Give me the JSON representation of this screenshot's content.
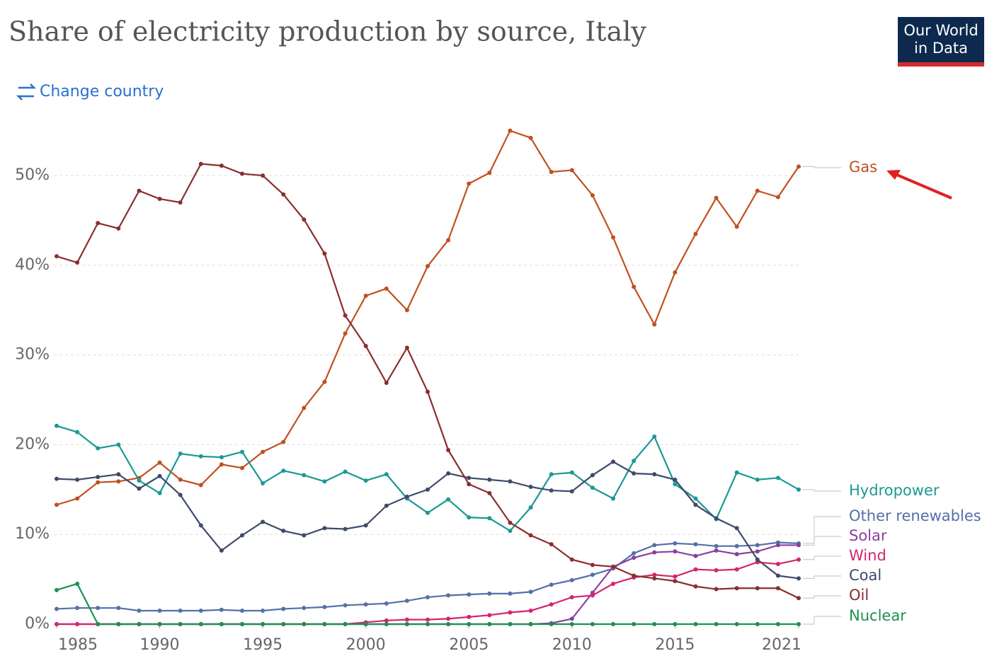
{
  "chart_data": {
    "type": "line",
    "title": "Share of electricity production by source, Italy",
    "change_country": "Change country",
    "logo": [
      "Our World",
      "in Data"
    ],
    "x": [
      1985,
      1986,
      1987,
      1988,
      1989,
      1990,
      1991,
      1992,
      1993,
      1994,
      1995,
      1996,
      1997,
      1998,
      1999,
      2000,
      2001,
      2002,
      2003,
      2004,
      2005,
      2006,
      2007,
      2008,
      2009,
      2010,
      2011,
      2012,
      2013,
      2014,
      2015,
      2016,
      2017,
      2018,
      2019,
      2020,
      2021
    ],
    "xlim": [
      1985,
      2021
    ],
    "xticks": [
      1985,
      1990,
      1995,
      2000,
      2005,
      2010,
      2015,
      2021
    ],
    "ylim": [
      0,
      56
    ],
    "yticks": [
      {
        "value": 0,
        "label": "0%"
      },
      {
        "value": 10,
        "label": "10%"
      },
      {
        "value": 20,
        "label": "20%"
      },
      {
        "value": 30,
        "label": "30%"
      },
      {
        "value": 40,
        "label": "40%"
      },
      {
        "value": 50,
        "label": "50%"
      }
    ],
    "grid": true,
    "series": [
      {
        "name": "Gas",
        "color": "#c0501f",
        "values": [
          13.3,
          14,
          15.8,
          15.9,
          16.3,
          18,
          16.1,
          15.5,
          17.8,
          17.4,
          19.2,
          20.3,
          24.1,
          27,
          32.4,
          36.6,
          37.4,
          35,
          39.9,
          42.8,
          49.1,
          50.3,
          55,
          54.2,
          50.4,
          50.6,
          47.8,
          43.1,
          37.6,
          33.4,
          39.2,
          43.5,
          47.5,
          44.3,
          48.3,
          47.6,
          51
        ]
      },
      {
        "name": "Hydropower",
        "color": "#1b9994",
        "values": [
          22.1,
          21.4,
          19.6,
          20,
          16,
          14.6,
          19,
          18.7,
          18.6,
          19.2,
          15.7,
          17.1,
          16.6,
          15.9,
          17,
          16,
          16.7,
          14,
          12.4,
          13.9,
          11.9,
          11.8,
          10.4,
          13,
          16.7,
          16.9,
          15.2,
          14,
          18.2,
          20.9,
          15.6,
          14,
          11.7,
          16.9,
          16.1,
          16.3,
          15
        ]
      },
      {
        "name": "Other renewables",
        "color": "#5470a8",
        "values": [
          1.7,
          1.8,
          1.8,
          1.8,
          1.5,
          1.5,
          1.5,
          1.5,
          1.6,
          1.5,
          1.5,
          1.7,
          1.8,
          1.9,
          2.1,
          2.2,
          2.3,
          2.6,
          3,
          3.2,
          3.3,
          3.4,
          3.4,
          3.6,
          4.4,
          4.9,
          5.5,
          6.2,
          7.9,
          8.8,
          9,
          8.9,
          8.7,
          8.7,
          8.8,
          9.1,
          9
        ]
      },
      {
        "name": "Solar",
        "color": "#8a3fa0",
        "values": [
          0,
          0,
          0,
          0,
          0,
          0,
          0,
          0,
          0,
          0,
          0,
          0,
          0,
          0,
          0,
          0,
          0,
          0,
          0,
          0,
          0,
          0,
          0,
          0,
          0.1,
          0.6,
          3.5,
          6.4,
          7.4,
          8,
          8.1,
          7.6,
          8.2,
          7.8,
          8.1,
          8.8,
          8.8
        ]
      },
      {
        "name": "Wind",
        "color": "#d6246e",
        "values": [
          0,
          0,
          0,
          0,
          0,
          0,
          0,
          0,
          0,
          0,
          0,
          0,
          0,
          0,
          0,
          0.2,
          0.4,
          0.5,
          0.5,
          0.6,
          0.8,
          1,
          1.3,
          1.5,
          2.2,
          3,
          3.2,
          4.5,
          5.2,
          5.5,
          5.3,
          6.1,
          6,
          6.1,
          6.9,
          6.7,
          7.2
        ]
      },
      {
        "name": "Coal",
        "color": "#3f4a6b",
        "values": [
          16.2,
          16.1,
          16.4,
          16.7,
          15.1,
          16.5,
          14.4,
          11,
          8.2,
          9.9,
          11.4,
          10.4,
          9.9,
          10.7,
          10.6,
          11,
          13.2,
          14.2,
          15,
          16.8,
          16.3,
          16.1,
          15.9,
          15.3,
          14.9,
          14.8,
          16.6,
          18.1,
          16.8,
          16.7,
          16.1,
          13.3,
          11.8,
          10.7,
          7.2,
          5.4,
          5.1
        ]
      },
      {
        "name": "Oil",
        "color": "#8b2e2e",
        "values": [
          41,
          40.3,
          44.7,
          44.1,
          48.3,
          47.4,
          47,
          51.3,
          51.1,
          50.2,
          50,
          47.9,
          45.1,
          41.3,
          34.4,
          31,
          26.9,
          30.8,
          25.9,
          19.4,
          15.6,
          14.6,
          11.3,
          9.9,
          8.9,
          7.2,
          6.6,
          6.4,
          5.4,
          5.1,
          4.8,
          4.2,
          3.9,
          4,
          4,
          4,
          2.9
        ]
      },
      {
        "name": "Nuclear",
        "color": "#1e9050",
        "values": [
          3.8,
          4.5,
          0,
          0,
          0,
          0,
          0,
          0,
          0,
          0,
          0,
          0,
          0,
          0,
          0,
          0,
          0,
          0,
          0,
          0,
          0,
          0,
          0,
          0,
          0,
          0,
          0,
          0,
          0,
          0,
          0,
          0,
          0,
          0,
          0,
          0,
          0
        ]
      }
    ]
  }
}
